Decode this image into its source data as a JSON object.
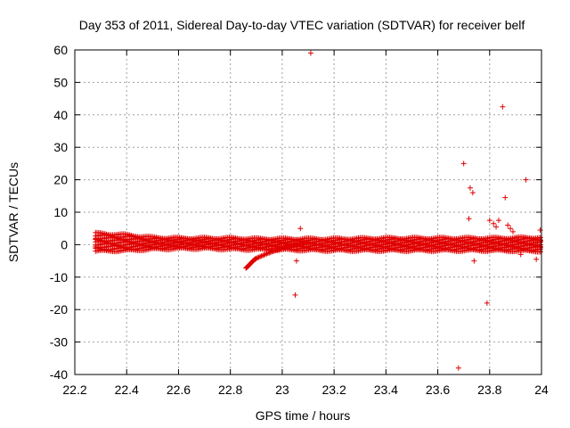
{
  "chart_data": {
    "type": "scatter",
    "title": "Day 353 of 2011, Sidereal Day-to-day VTEC variation (SDTVAR) for receiver belf",
    "xlabel": "GPS time / hours",
    "ylabel": "SDTVAR / TECUs",
    "xlim": [
      22.2,
      24
    ],
    "ylim": [
      -40,
      60
    ],
    "x_ticks": [
      22.2,
      22.4,
      22.6,
      22.8,
      23,
      23.2,
      23.4,
      23.6,
      23.8,
      24
    ],
    "x_tick_labels": [
      "22.2",
      "22.4",
      "22.6",
      "22.8",
      "23",
      "23.2",
      "23.4",
      "23.6",
      "23.8",
      "24"
    ],
    "y_ticks": [
      -40,
      -30,
      -20,
      -10,
      0,
      10,
      20,
      30,
      40,
      50,
      60
    ],
    "y_tick_labels": [
      "-40",
      "-30",
      "-20",
      "-10",
      "0",
      "10",
      "20",
      "30",
      "40",
      "50",
      "60"
    ],
    "grid": true,
    "marker": "plus",
    "colors": {
      "points": "#e00000",
      "grid": "#a0a0a0",
      "axes": "#000000"
    },
    "band": {
      "description": "dense band of points from multiple satellite tracks",
      "x": [
        22.28,
        22.4,
        22.45,
        22.5,
        22.6,
        22.7,
        22.8,
        22.9,
        23.0,
        23.2,
        23.4,
        23.6,
        23.8,
        24.0
      ],
      "upper": [
        3.5,
        3.0,
        2.6,
        2.2,
        2.0,
        2.0,
        2.0,
        1.8,
        1.8,
        1.8,
        2.0,
        2.0,
        2.0,
        2.2
      ],
      "lower": [
        -2.0,
        -1.8,
        -1.6,
        -1.4,
        -1.2,
        -1.2,
        -1.4,
        -1.5,
        -1.6,
        -1.8,
        -1.8,
        -1.8,
        -1.8,
        -2.0
      ]
    },
    "dip_track": {
      "x": [
        22.86,
        22.87,
        22.88,
        22.89,
        22.9,
        22.92,
        22.94,
        22.96,
        22.98,
        23.0,
        23.03,
        23.06,
        23.1
      ],
      "y": [
        -7.2,
        -6.5,
        -5.6,
        -4.8,
        -4.2,
        -3.5,
        -2.8,
        -2.2,
        -1.6,
        -1.0,
        -0.4,
        0.2,
        0.8
      ]
    },
    "outliers": {
      "x": [
        23.11,
        23.07,
        23.05,
        23.055,
        23.68,
        23.7,
        23.72,
        23.725,
        23.735,
        23.74,
        23.79,
        23.8,
        23.815,
        23.825,
        23.835,
        23.85,
        23.86,
        23.87,
        23.88,
        23.89,
        23.9,
        23.92,
        23.94,
        23.97,
        23.98,
        23.995
      ],
      "y": [
        59,
        5,
        -15.5,
        -5,
        -38,
        25,
        8,
        17.5,
        16,
        -5,
        -18,
        7.5,
        6.5,
        5.5,
        7.5,
        42.5,
        14.5,
        6,
        5,
        4,
        2,
        -3,
        20,
        1.5,
        -4.5,
        4.5
      ]
    }
  }
}
